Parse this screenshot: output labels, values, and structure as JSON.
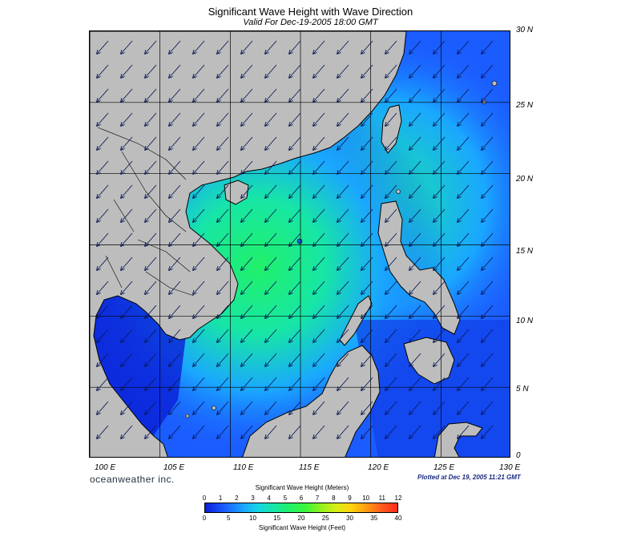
{
  "header": {
    "title": "Significant Wave Height with Wave Direction",
    "subtitle": "Valid For Dec-19-2005 18:00 GMT"
  },
  "map": {
    "lat_labels": [
      "30 N",
      "25 N",
      "20 N",
      "15 N",
      "10 N",
      "5 N",
      "0"
    ],
    "lon_labels": [
      "100 E",
      "105 E",
      "110 E",
      "115 E",
      "120 E",
      "125 E",
      "130 E"
    ],
    "lat_range": [
      0,
      30
    ],
    "lon_range": [
      100,
      130
    ],
    "arrow_direction": "toward southwest",
    "land_color": "#bdbdbd",
    "colors": {
      "low": "#0a1fd6",
      "mid_low": "#1b5cff",
      "mid": "#1aa7ff",
      "mid_high": "#17e6a5",
      "high": "#21f06a"
    }
  },
  "footer": {
    "brand": "oceanweather inc.",
    "plotted": "Plotted at Dec 19, 2005 11:21 GMT"
  },
  "colorbar": {
    "title_top": "Significant Wave Height (Meters)",
    "title_bottom": "Significant Wave Height (Feet)",
    "meters_ticks": [
      "0",
      "1",
      "2",
      "3",
      "4",
      "5",
      "6",
      "7",
      "8",
      "9",
      "10",
      "11",
      "12"
    ],
    "feet_ticks": [
      "0",
      "5",
      "10",
      "15",
      "20",
      "25",
      "30",
      "35",
      "40"
    ],
    "meters_range": [
      0,
      12
    ],
    "feet_range": [
      0,
      40
    ]
  }
}
